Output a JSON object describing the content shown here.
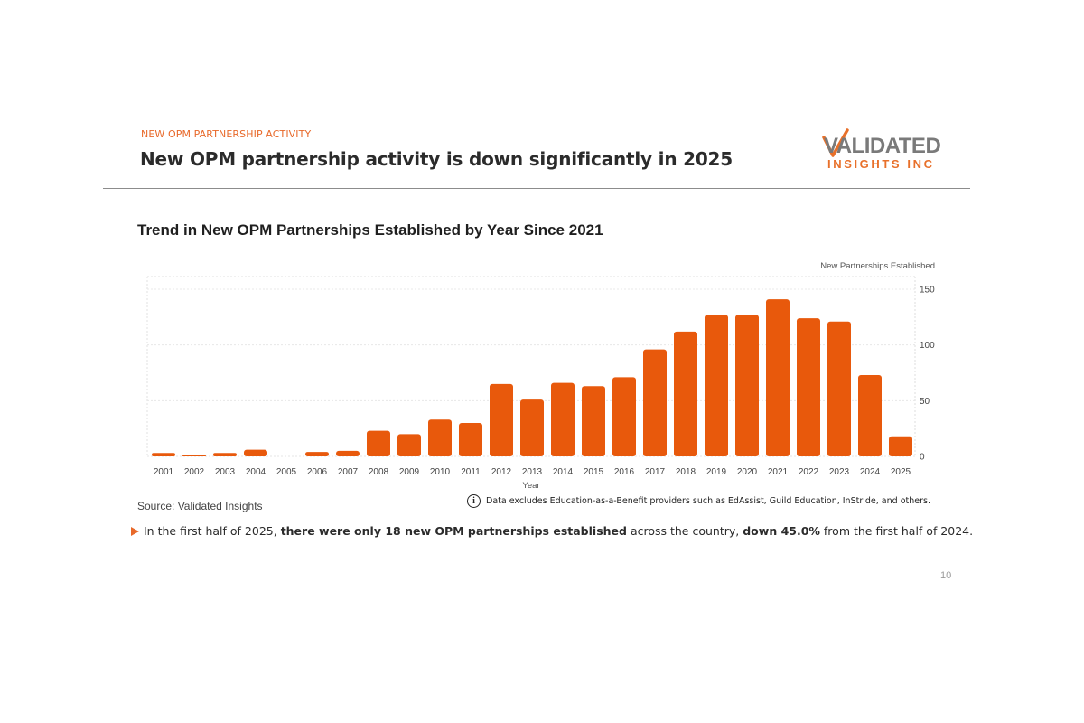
{
  "header": {
    "eyebrow": "NEW OPM PARTNERSHIP ACTIVITY",
    "headline": "New OPM partnership activity is down significantly in 2025"
  },
  "logo": {
    "line1": "VALIDATED",
    "line2": "INSIGHTS INC",
    "colors": {
      "gray": "#7a7a7a",
      "orange": "#e8702a"
    }
  },
  "footer": {
    "source": "Source: Validated Insights",
    "note": "Data excludes Education-as-a-Benefit providers such as EdAssist, Guild Education, InStride, and others.",
    "takeaway": {
      "part1": "In the first half of 2025, ",
      "bold1": "there were only 18 new OPM partnerships established",
      "part2": " across the country, ",
      "bold2": "down 45.0%",
      "part3": " from the first half of 2024."
    },
    "page_number": "10"
  },
  "colors": {
    "accent": "#e8692a",
    "bar": "#e8590c"
  },
  "chart_data": {
    "type": "bar",
    "title": "Trend in New OPM Partnerships Established by Year Since 2021",
    "xlabel": "Year",
    "ylabel": "New Partnerships Established",
    "categories": [
      "2001",
      "2002",
      "2003",
      "2004",
      "2005",
      "2006",
      "2007",
      "2008",
      "2009",
      "2010",
      "2011",
      "2012",
      "2013",
      "2014",
      "2015",
      "2016",
      "2017",
      "2018",
      "2019",
      "2020",
      "2021",
      "2022",
      "2023",
      "2024",
      "2025"
    ],
    "values": [
      3,
      1,
      3,
      6,
      0,
      4,
      5,
      23,
      20,
      33,
      30,
      65,
      51,
      66,
      63,
      71,
      96,
      112,
      127,
      127,
      141,
      124,
      121,
      73,
      18
    ],
    "ylim": [
      0,
      150
    ],
    "yticks": [
      0,
      50,
      100,
      150
    ],
    "y_axis_side": "right",
    "grid": true,
    "legend": "none"
  }
}
